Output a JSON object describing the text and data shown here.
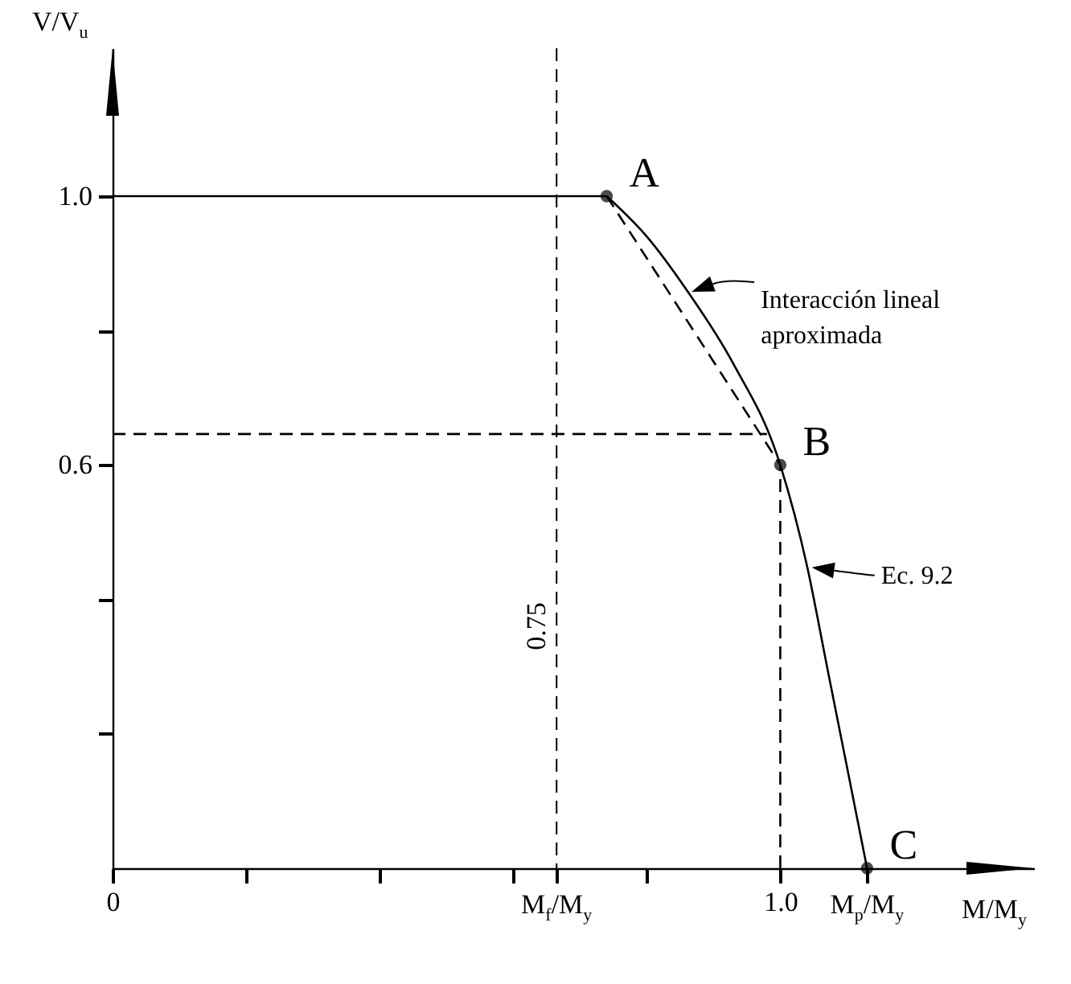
{
  "chart_data": {
    "type": "line",
    "xlabel": "M/M$_{y}$",
    "ylabel": "V/V$_{u}$",
    "xlim": [
      0,
      1.38
    ],
    "ylim": [
      0,
      1.22
    ],
    "xticks": [
      {
        "value": 0,
        "label": "0"
      },
      {
        "value": 0.2,
        "label": null
      },
      {
        "value": 0.4,
        "label": null
      },
      {
        "value": 0.6,
        "label": null
      },
      {
        "value": 0.665,
        "label": "M$_{f}$/M$_{y}$"
      },
      {
        "value": 0.8,
        "label": null
      },
      {
        "value": 1.0,
        "label": "1.0"
      },
      {
        "value": 1.13,
        "label": "M$_{p}$/M$_{y}$"
      }
    ],
    "yticks": [
      {
        "value": 0.2,
        "label": null
      },
      {
        "value": 0.4,
        "label": null
      },
      {
        "value": 0.6,
        "label": "0.6"
      },
      {
        "value": 0.8,
        "label": null
      },
      {
        "value": 1.0,
        "label": "1.0"
      }
    ],
    "series": [
      {
        "color": "#000000",
        "line_style": "solid",
        "x": [
          0,
          0.74
        ],
        "values": [
          1.0,
          1.0
        ]
      },
      {
        "color": "#000000",
        "line_style": "solid",
        "x": [
          0.74,
          0.8,
          0.86,
          0.93,
          1.0,
          1.04,
          1.07,
          1.1,
          1.13
        ],
        "values": [
          1.0,
          0.94,
          0.86,
          0.75,
          0.6,
          0.45,
          0.3,
          0.15,
          0
        ]
      },
      {
        "color": "#000000",
        "line_style": "dashed",
        "x": [
          0.74,
          1.0
        ],
        "values": [
          1.0,
          0.6
        ]
      },
      {
        "color": "#000000",
        "line_style": "dashed",
        "x": [
          0,
          0.98
        ],
        "values": [
          0.646,
          0.646
        ]
      },
      {
        "color": "#000000",
        "line_style": "dashed",
        "x": [
          1.0,
          1.0
        ],
        "values": [
          0,
          0.6
        ]
      },
      {
        "type": "scatter",
        "color": "#000000",
        "marker": "circle",
        "x": [
          0.74,
          1.0,
          1.13
        ],
        "values": [
          1.0,
          0.6,
          0
        ]
      }
    ],
    "ref_lines": [
      {
        "axis": "x",
        "value": 0.665,
        "color": "#000000",
        "line_style": "dashed"
      }
    ],
    "annotations": [
      {
        "text": "A",
        "x": 0.74,
        "y": 1.0
      },
      {
        "text": "B",
        "x": 1.0,
        "y": 0.6
      },
      {
        "text": "C",
        "x": 1.13,
        "y": 0
      },
      {
        "text": "Interacción lineal aproximada",
        "x": 0.86,
        "y": 0.86
      },
      {
        "text": "Ec. 9.2",
        "x": 1.04,
        "y": 0.45
      },
      {
        "text": "0.75",
        "x": 0.665,
        "y": 0.36
      }
    ]
  }
}
